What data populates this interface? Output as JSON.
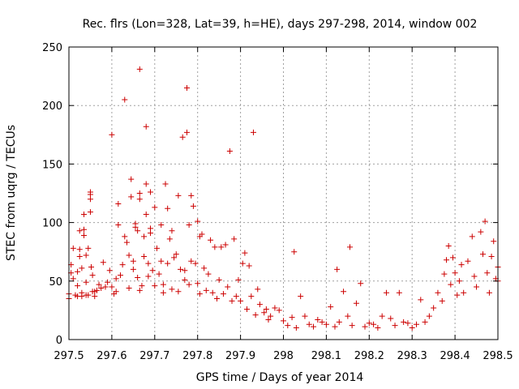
{
  "chart_data": {
    "type": "scatter",
    "title": "Rec. flrs (Lon=328, Lat=39, h=HE), days 297-298, 2014, window 002",
    "xlabel": "GPS time / Days of year 2014",
    "ylabel": "STEC from uqrg / TECUs",
    "xlim": [
      297.5,
      298.5
    ],
    "ylim": [
      0,
      250
    ],
    "x_ticks": [
      "297.5",
      "297.6",
      "297.7",
      "297.8",
      "297.9",
      "298",
      "298.1",
      "298.2",
      "298.3",
      "298.4",
      "298.5"
    ],
    "y_ticks": [
      "0",
      "50",
      "100",
      "150",
      "200",
      "250"
    ],
    "grid": true,
    "marker": "+",
    "color": "#cc0000",
    "series": [
      {
        "points": [
          [
            297.5,
            35
          ],
          [
            297.5,
            39
          ],
          [
            297.505,
            57
          ],
          [
            297.505,
            64
          ],
          [
            297.51,
            78
          ],
          [
            297.51,
            52
          ],
          [
            297.515,
            38
          ],
          [
            297.52,
            37
          ],
          [
            297.52,
            46
          ],
          [
            297.52,
            58
          ],
          [
            297.525,
            71
          ],
          [
            297.525,
            77
          ],
          [
            297.525,
            93
          ],
          [
            297.53,
            37
          ],
          [
            297.53,
            40
          ],
          [
            297.53,
            61
          ],
          [
            297.535,
            94
          ],
          [
            297.535,
            107
          ],
          [
            297.535,
            89
          ],
          [
            297.54,
            38
          ],
          [
            297.54,
            49
          ],
          [
            297.54,
            72
          ],
          [
            297.545,
            78
          ],
          [
            297.545,
            38
          ],
          [
            297.55,
            124
          ],
          [
            297.55,
            126
          ],
          [
            297.55,
            120
          ],
          [
            297.55,
            109
          ],
          [
            297.552,
            62
          ],
          [
            297.555,
            55
          ],
          [
            297.555,
            41
          ],
          [
            297.56,
            41
          ],
          [
            297.56,
            37
          ],
          [
            297.565,
            42
          ],
          [
            297.57,
            47
          ],
          [
            297.575,
            44
          ],
          [
            297.58,
            66
          ],
          [
            297.585,
            45
          ],
          [
            297.59,
            49
          ],
          [
            297.595,
            59
          ],
          [
            297.6,
            175
          ],
          [
            297.6,
            45
          ],
          [
            297.605,
            39
          ],
          [
            297.61,
            41
          ],
          [
            297.61,
            52
          ],
          [
            297.615,
            98
          ],
          [
            297.615,
            116
          ],
          [
            297.62,
            55
          ],
          [
            297.625,
            64
          ],
          [
            297.63,
            205
          ],
          [
            297.63,
            88
          ],
          [
            297.635,
            83
          ],
          [
            297.64,
            44
          ],
          [
            297.64,
            72
          ],
          [
            297.645,
            137
          ],
          [
            297.645,
            122
          ],
          [
            297.65,
            67
          ],
          [
            297.65,
            60
          ],
          [
            297.655,
            99
          ],
          [
            297.655,
            96
          ],
          [
            297.66,
            93
          ],
          [
            297.66,
            53
          ],
          [
            297.665,
            42
          ],
          [
            297.665,
            231
          ],
          [
            297.665,
            125
          ],
          [
            297.665,
            120
          ],
          [
            297.67,
            46
          ],
          [
            297.675,
            71
          ],
          [
            297.675,
            88
          ],
          [
            297.68,
            133
          ],
          [
            297.68,
            107
          ],
          [
            297.68,
            182
          ],
          [
            297.685,
            65
          ],
          [
            297.685,
            54
          ],
          [
            297.69,
            126
          ],
          [
            297.69,
            95
          ],
          [
            297.69,
            91
          ],
          [
            297.695,
            59
          ],
          [
            297.7,
            46
          ],
          [
            297.7,
            113
          ],
          [
            297.705,
            78
          ],
          [
            297.71,
            56
          ],
          [
            297.715,
            98
          ],
          [
            297.715,
            67
          ],
          [
            297.72,
            47
          ],
          [
            297.72,
            40
          ],
          [
            297.725,
            133
          ],
          [
            297.73,
            112
          ],
          [
            297.73,
            65
          ],
          [
            297.735,
            86
          ],
          [
            297.74,
            93
          ],
          [
            297.74,
            43
          ],
          [
            297.745,
            70
          ],
          [
            297.75,
            73
          ],
          [
            297.755,
            41
          ],
          [
            297.755,
            123
          ],
          [
            297.76,
            60
          ],
          [
            297.765,
            173
          ],
          [
            297.77,
            59
          ],
          [
            297.77,
            51
          ],
          [
            297.775,
            215
          ],
          [
            297.775,
            177
          ],
          [
            297.78,
            98
          ],
          [
            297.78,
            47
          ],
          [
            297.785,
            67
          ],
          [
            297.785,
            123
          ],
          [
            297.79,
            114
          ],
          [
            297.795,
            65
          ],
          [
            297.8,
            48
          ],
          [
            297.8,
            101
          ],
          [
            297.805,
            88
          ],
          [
            297.805,
            39
          ],
          [
            297.81,
            90
          ],
          [
            297.815,
            61
          ],
          [
            297.82,
            42
          ],
          [
            297.825,
            56
          ],
          [
            297.83,
            85
          ],
          [
            297.835,
            40
          ],
          [
            297.84,
            79
          ],
          [
            297.845,
            35
          ],
          [
            297.85,
            51
          ],
          [
            297.855,
            79
          ],
          [
            297.86,
            39
          ],
          [
            297.865,
            81
          ],
          [
            297.87,
            45
          ],
          [
            297.875,
            161
          ],
          [
            297.88,
            33
          ],
          [
            297.885,
            86
          ],
          [
            297.89,
            37
          ],
          [
            297.895,
            51
          ],
          [
            297.9,
            33
          ],
          [
            297.905,
            65
          ],
          [
            297.91,
            74
          ],
          [
            297.915,
            26
          ],
          [
            297.92,
            63
          ],
          [
            297.925,
            37
          ],
          [
            297.93,
            177
          ],
          [
            297.935,
            21
          ],
          [
            297.94,
            43
          ],
          [
            297.945,
            30
          ],
          [
            297.955,
            23
          ],
          [
            297.96,
            26
          ],
          [
            297.965,
            17
          ],
          [
            297.97,
            20
          ],
          [
            297.98,
            27
          ],
          [
            297.99,
            25
          ],
          [
            298.0,
            16
          ],
          [
            298.01,
            12
          ],
          [
            298.02,
            19
          ],
          [
            298.025,
            75
          ],
          [
            298.03,
            10
          ],
          [
            298.04,
            37
          ],
          [
            298.05,
            20
          ],
          [
            298.06,
            13
          ],
          [
            298.07,
            11
          ],
          [
            298.08,
            17
          ],
          [
            298.09,
            15
          ],
          [
            298.1,
            13
          ],
          [
            298.11,
            28
          ],
          [
            298.12,
            11
          ],
          [
            298.125,
            60
          ],
          [
            298.13,
            15
          ],
          [
            298.14,
            41
          ],
          [
            298.15,
            20
          ],
          [
            298.155,
            79
          ],
          [
            298.16,
            12
          ],
          [
            298.17,
            31
          ],
          [
            298.18,
            48
          ],
          [
            298.19,
            11
          ],
          [
            298.2,
            14
          ],
          [
            298.21,
            13
          ],
          [
            298.22,
            10
          ],
          [
            298.23,
            20
          ],
          [
            298.24,
            40
          ],
          [
            298.25,
            18
          ],
          [
            298.26,
            12
          ],
          [
            298.27,
            40
          ],
          [
            298.28,
            15
          ],
          [
            298.29,
            14
          ],
          [
            298.3,
            10
          ],
          [
            298.31,
            13
          ],
          [
            298.32,
            34
          ],
          [
            298.33,
            15
          ],
          [
            298.34,
            20
          ],
          [
            298.35,
            27
          ],
          [
            298.36,
            40
          ],
          [
            298.37,
            33
          ],
          [
            298.375,
            56
          ],
          [
            298.38,
            68
          ],
          [
            298.385,
            80
          ],
          [
            298.39,
            47
          ],
          [
            298.395,
            70
          ],
          [
            298.4,
            57
          ],
          [
            298.405,
            38
          ],
          [
            298.41,
            50
          ],
          [
            298.415,
            64
          ],
          [
            298.42,
            40
          ],
          [
            298.43,
            67
          ],
          [
            298.44,
            88
          ],
          [
            298.445,
            54
          ],
          [
            298.45,
            45
          ],
          [
            298.46,
            92
          ],
          [
            298.465,
            73
          ],
          [
            298.47,
            101
          ],
          [
            298.475,
            57
          ],
          [
            298.48,
            40
          ],
          [
            298.485,
            71
          ],
          [
            298.49,
            84
          ],
          [
            298.495,
            52
          ],
          [
            298.5,
            62
          ],
          [
            298.5,
            50
          ]
        ]
      }
    ]
  }
}
